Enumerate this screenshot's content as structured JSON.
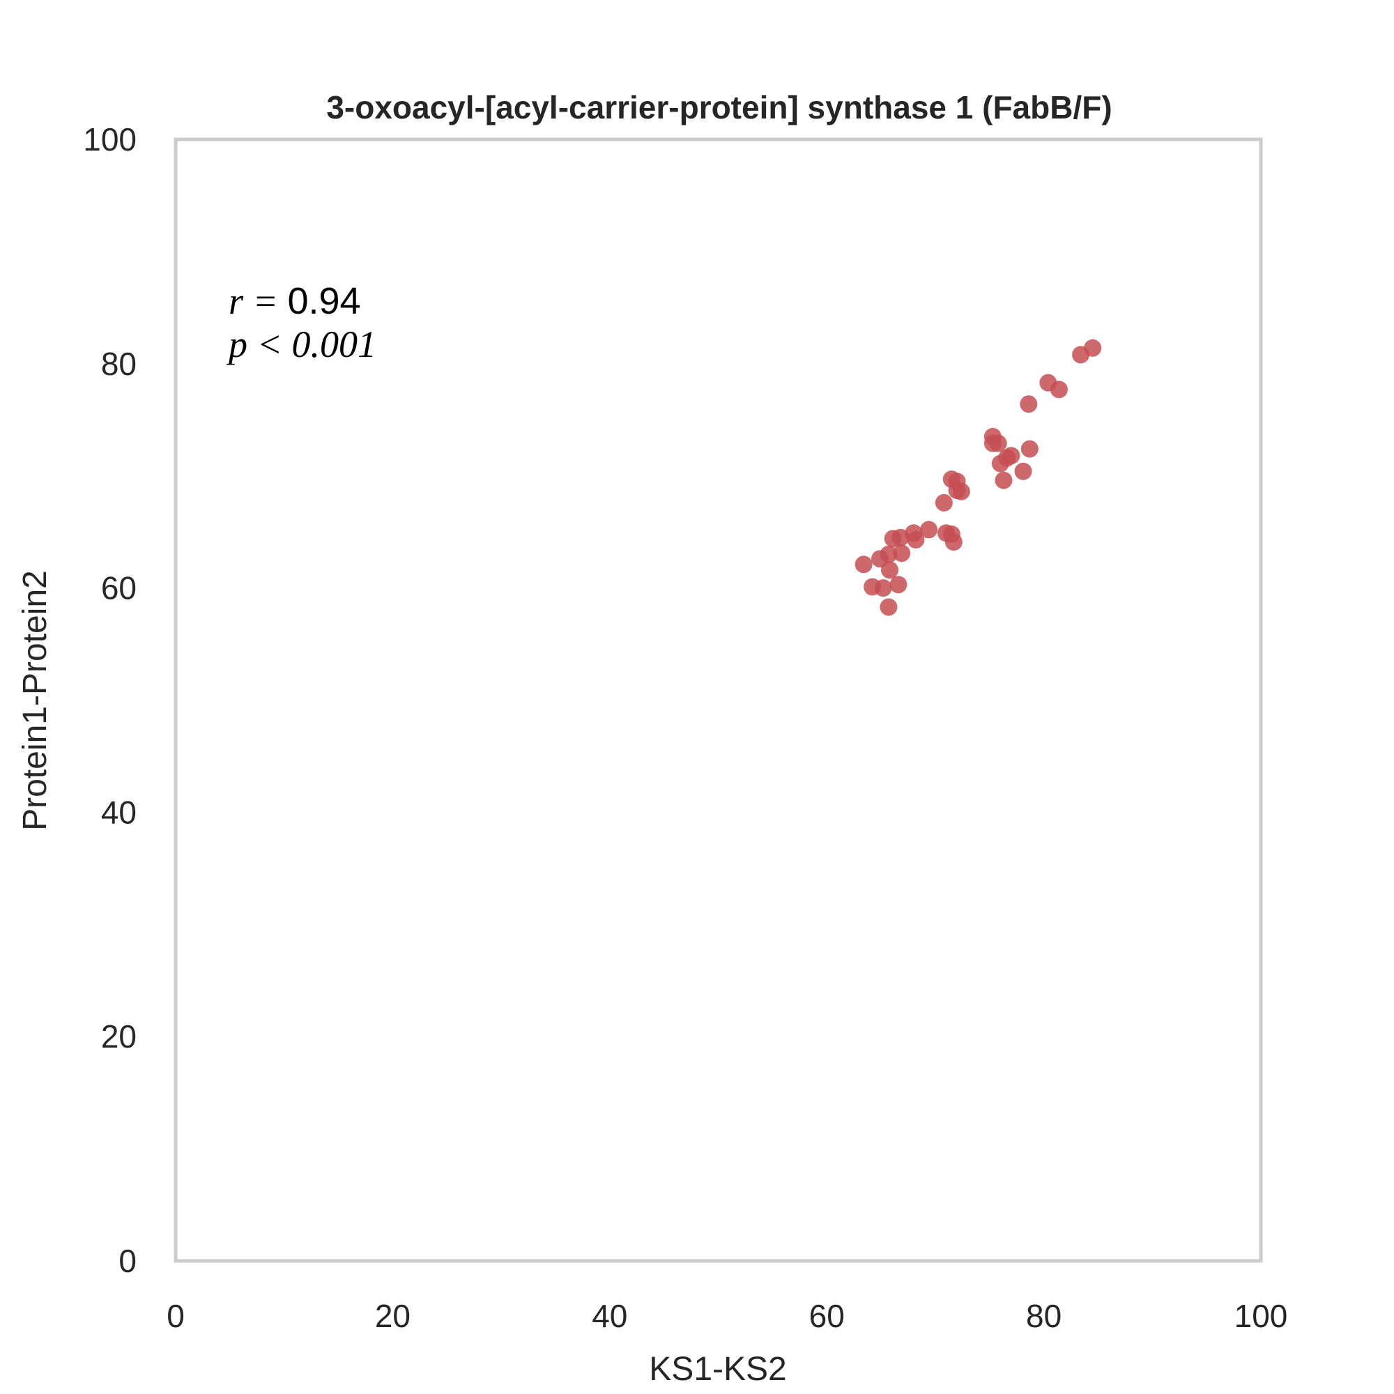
{
  "chart_data": {
    "type": "scatter",
    "title": "3-oxoacyl-[acyl-carrier-protein] synthase 1 (FabB/F)",
    "xlabel": "KS1-KS2",
    "ylabel": "Protein1-Protein2",
    "xlim": [
      0,
      100
    ],
    "ylim": [
      0,
      100
    ],
    "xticks": [
      "0",
      "20",
      "40",
      "60",
      "80",
      "100"
    ],
    "yticks": [
      "0",
      "20",
      "40",
      "60",
      "80",
      "100"
    ],
    "grid": false,
    "annotation": {
      "r_label": "r = ",
      "r_value": "0.94",
      "p_label": "p < 0.001"
    },
    "marker_color": "#c44e52",
    "series": [
      {
        "points": [
          [
            63.4,
            62.1
          ],
          [
            64.2,
            60.1
          ],
          [
            65.2,
            60.0
          ],
          [
            64.9,
            62.6
          ],
          [
            65.7,
            63.0
          ],
          [
            65.8,
            61.6
          ],
          [
            65.7,
            58.3
          ],
          [
            66.1,
            64.4
          ],
          [
            66.6,
            60.3
          ],
          [
            66.8,
            64.5
          ],
          [
            66.9,
            63.1
          ],
          [
            68.0,
            64.9
          ],
          [
            68.2,
            64.3
          ],
          [
            69.4,
            65.2
          ],
          [
            70.8,
            67.6
          ],
          [
            71.0,
            64.9
          ],
          [
            71.5,
            64.8
          ],
          [
            71.7,
            64.1
          ],
          [
            71.5,
            69.7
          ],
          [
            72.0,
            69.5
          ],
          [
            72.0,
            68.7
          ],
          [
            72.4,
            68.6
          ],
          [
            75.3,
            73.5
          ],
          [
            75.3,
            72.9
          ],
          [
            75.8,
            72.9
          ],
          [
            76.0,
            71.1
          ],
          [
            76.3,
            69.6
          ],
          [
            76.6,
            71.6
          ],
          [
            77.0,
            71.8
          ],
          [
            78.1,
            70.4
          ],
          [
            78.6,
            76.4
          ],
          [
            78.7,
            72.4
          ],
          [
            80.4,
            78.3
          ],
          [
            81.4,
            77.7
          ],
          [
            83.4,
            80.8
          ],
          [
            84.5,
            81.4
          ]
        ]
      }
    ]
  }
}
